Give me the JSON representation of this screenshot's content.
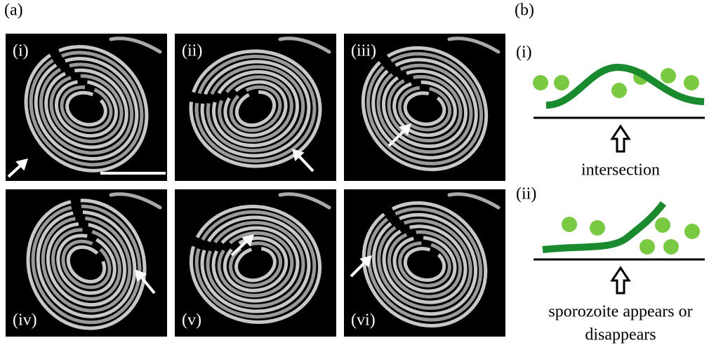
{
  "panel_a": {
    "label": "(a)",
    "images": [
      {
        "label": "(i)"
      },
      {
        "label": "(ii)"
      },
      {
        "label": "(iii)"
      },
      {
        "label": "(iv)"
      },
      {
        "label": "(v)"
      },
      {
        "label": "(vi)"
      }
    ]
  },
  "panel_b": {
    "label": "(b)",
    "diagrams": [
      {
        "label": "(i)",
        "caption": [
          "intersection"
        ]
      },
      {
        "label": "(ii)",
        "caption": [
          "sporozoite appears or",
          "disappears"
        ]
      }
    ]
  }
}
